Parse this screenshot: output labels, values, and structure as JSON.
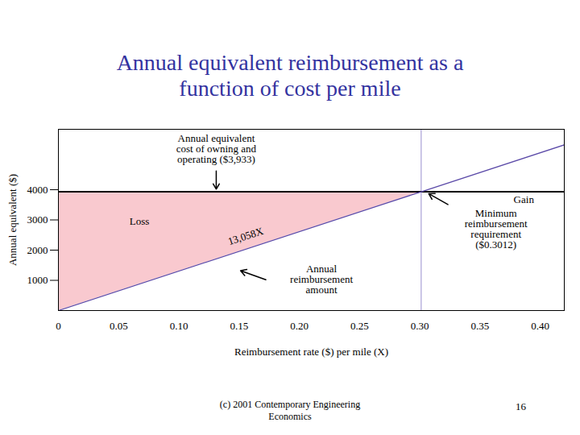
{
  "chart_data": {
    "type": "line",
    "title": "Annual equivalent reimbursement as a function of cost per mile",
    "xlabel": "Reimbursement rate ($) per mile (X)",
    "ylabel": "Annual equivalent ($)",
    "x": [
      0,
      0.3012,
      0.42
    ],
    "series": [
      {
        "color": "#000000",
        "values": [
          3933,
          3933,
          3933
        ]
      },
      {
        "color": "#5b4aa8",
        "values": [
          0,
          3933,
          5484
        ]
      }
    ],
    "xlim": [
      0,
      0.42
    ],
    "xticks": [
      0,
      0.05,
      {
        "value": 0.1,
        "label": "0.10"
      },
      0.15,
      {
        "value": 0.2,
        "label": "0.20"
      },
      0.25,
      {
        "value": 0.3,
        "label": "0.30"
      },
      0.35,
      {
        "value": 0.4,
        "label": "0.40"
      }
    ],
    "ylim": [
      0,
      6000
    ],
    "yticks": [
      1000,
      2000,
      3000,
      4000
    ],
    "grid": false,
    "annotations": [
      "Annual equivalent cost of owning and operating ($3,933)",
      "Gain",
      "Loss",
      "13,058X",
      "Minimum reimbursement requirement ($0.3012)",
      "Annual reimbursement amount"
    ],
    "footer": "(c) 2001 Contemporary Engineering Economics",
    "page_number": 16
  }
}
